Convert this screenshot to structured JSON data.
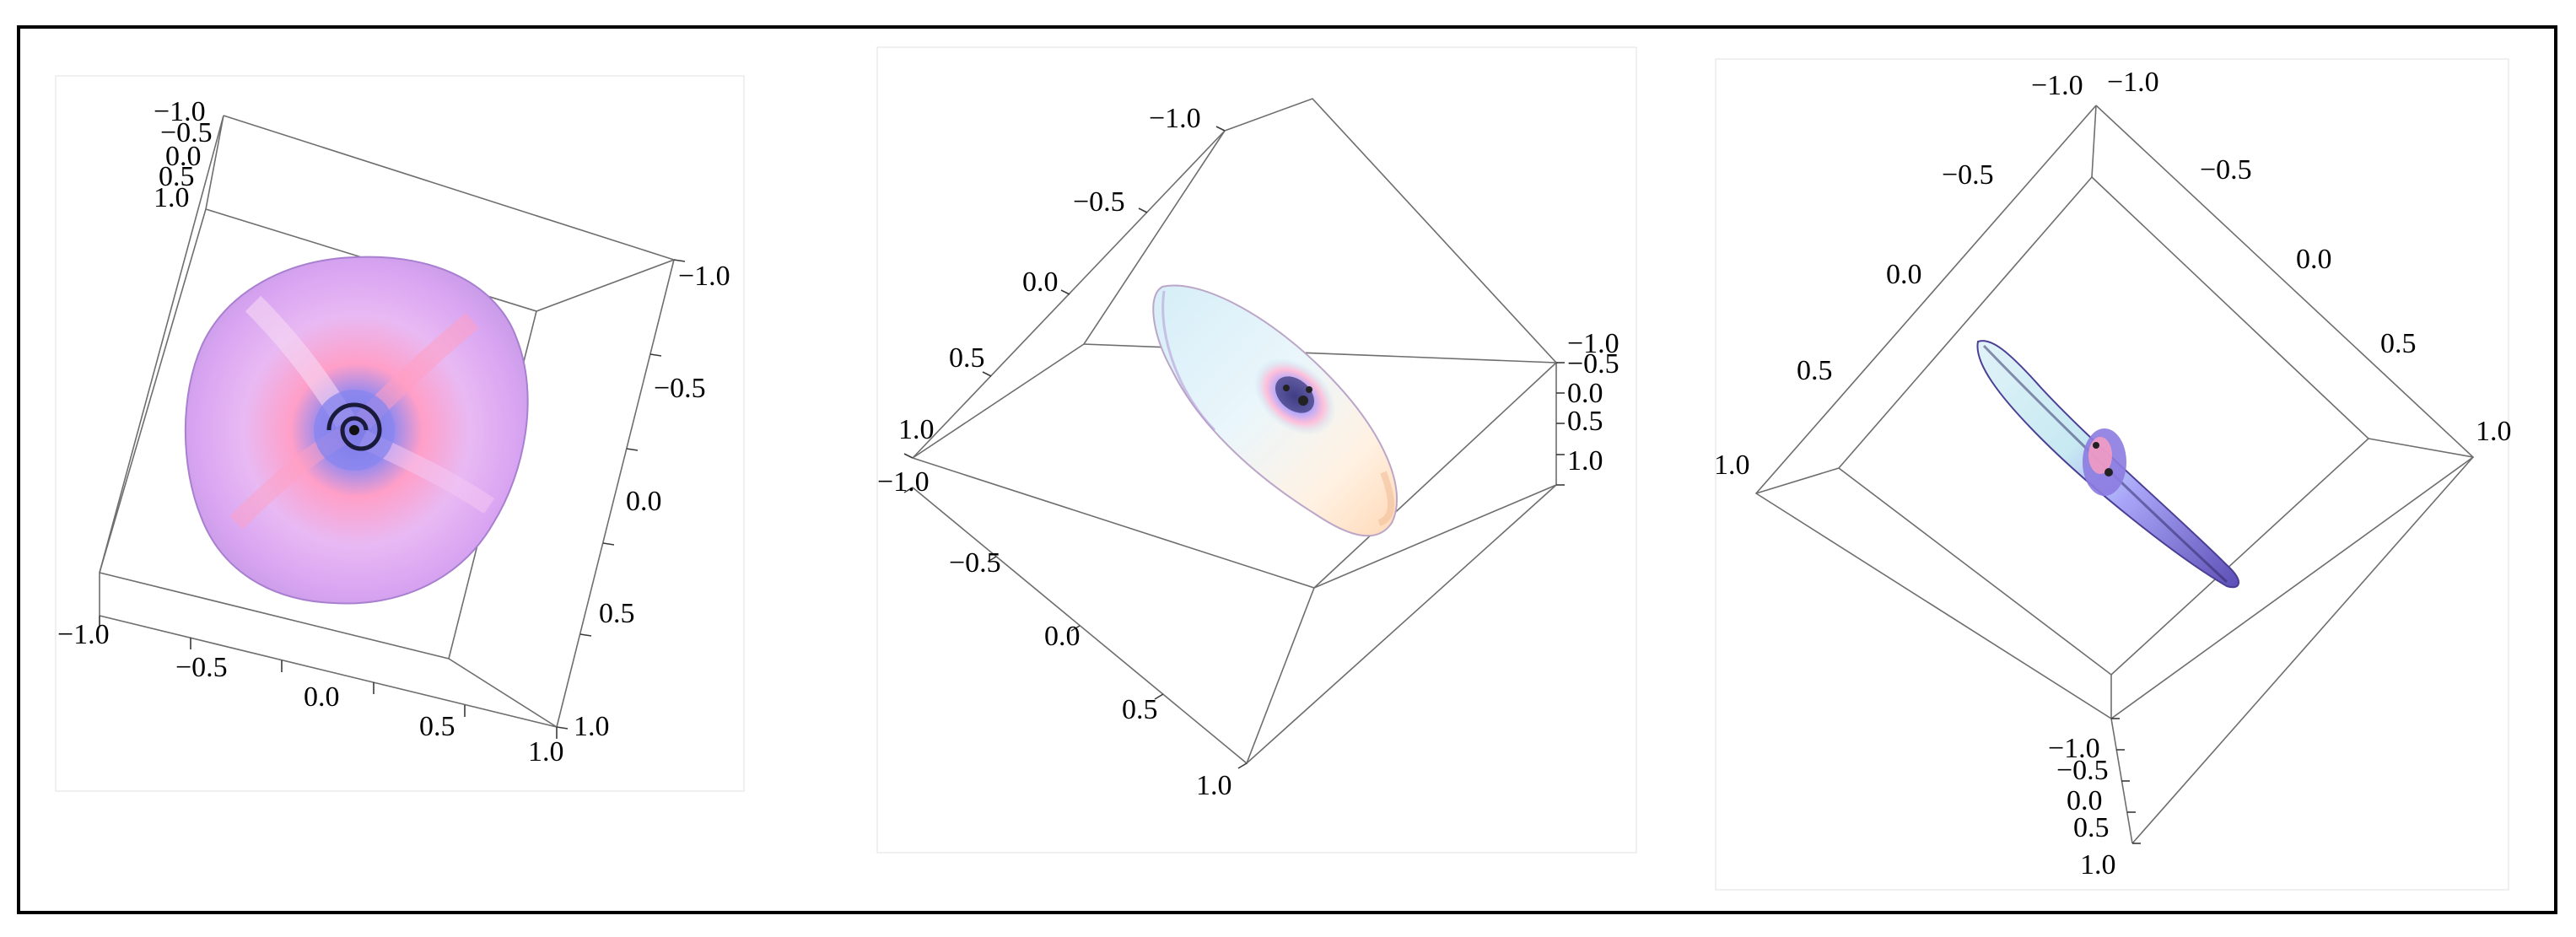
{
  "figure": {
    "panels": [
      {
        "name": "panel-1",
        "view": "top-down",
        "surface_colors": [
          "#f2c7ee",
          "#d9a5f2",
          "#ff9fc3",
          "#8f8cf0"
        ],
        "axis_labels": {
          "top_left_stack": [
            "−1.0",
            "−0.5",
            "0.0",
            "0.5",
            "1.0"
          ],
          "right_axis": [
            "−1.0",
            "−0.5",
            "0.0",
            "0.5",
            "1.0"
          ],
          "bottom_axis": [
            "−1.0",
            "−0.5",
            "0.0",
            "0.5",
            "1.0"
          ]
        }
      },
      {
        "name": "panel-2",
        "view": "tilted",
        "surface_colors": [
          "#e6f4fb",
          "#bfe6f6",
          "#ffe2c8",
          "#a8a8ff"
        ],
        "axis_labels": {
          "upper_left_axis": [
            "−1.0",
            "−0.5",
            "0.0",
            "0.5",
            "1.0"
          ],
          "right_stack": [
            "−1.0",
            "−0.5",
            "0.0",
            "0.5",
            "1.0"
          ],
          "lower_left_axis": [
            "−1.0",
            "−0.5",
            "0.0",
            "0.5",
            "1.0"
          ]
        }
      },
      {
        "name": "panel-3",
        "view": "edge-on",
        "surface_colors": [
          "#d7f0f7",
          "#b9b7ff",
          "#7c6fd6",
          "#ff9fb8"
        ],
        "axis_labels": {
          "top_pair": [
            "−1.0",
            "−1.0"
          ],
          "upper_right_axis": [
            "−0.5",
            "0.0",
            "0.5",
            "1.0"
          ],
          "left_axis": [
            "−0.5",
            "0.0",
            "0.5",
            "1.0"
          ],
          "bottom_stack": [
            "−1.0",
            "−0.5",
            "0.0",
            "0.5",
            "1.0"
          ]
        }
      }
    ]
  }
}
